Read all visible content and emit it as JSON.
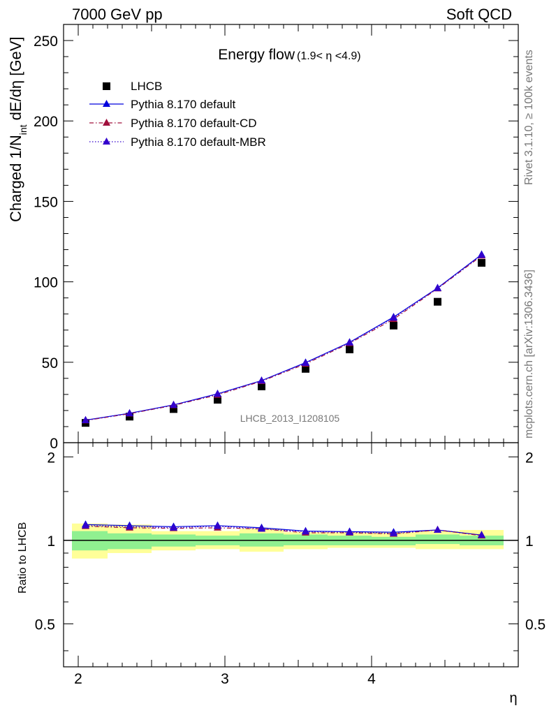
{
  "header": {
    "left": "7000 GeV pp",
    "right": "Soft QCD"
  },
  "side_labels": {
    "rivet": "Rivet 3.1.10, ≥ 100k events",
    "mcplots": "mcplots.cern.ch [arXiv:1306.3436]"
  },
  "chart_data": [
    {
      "type": "line",
      "title": "Energy flow",
      "title_cut": "(1.9< η <4.9)",
      "ylabel": "Charged 1/N",
      "ylabel_sub": "int",
      "ylabel_tail": " dE/dη [GeV]",
      "analysis_tag": "LHCB_2013_I1208105",
      "ylim": [
        0,
        260
      ],
      "xlim": [
        1.9,
        5.0
      ],
      "y_ticks": [
        0,
        50,
        100,
        150,
        200,
        250
      ],
      "x": [
        2.05,
        2.35,
        2.65,
        2.95,
        3.25,
        3.55,
        3.85,
        4.15,
        4.45,
        4.75
      ],
      "series": [
        {
          "name": "LHCB",
          "style": "data",
          "color": "#000000",
          "values": [
            12.3,
            16.2,
            20.9,
            26.7,
            35.0,
            45.9,
            58.0,
            72.8,
            87.6,
            111.8
          ]
        },
        {
          "name": "Pythia 8.170 default",
          "style": "solid",
          "color": "#0000dd",
          "values": [
            14.0,
            18.3,
            23.5,
            30.4,
            38.6,
            49.8,
            62.4,
            78.1,
            96.2,
            117.0
          ]
        },
        {
          "name": "Pythia 8.170 default-CD",
          "style": "dashdot",
          "color": "#a0103c",
          "values": [
            13.8,
            18.0,
            23.2,
            29.7,
            38.2,
            49.0,
            61.8,
            76.8,
            95.8,
            116.2
          ]
        },
        {
          "name": "Pythia 8.170 default-MBR",
          "style": "dotted",
          "color": "#3300cc",
          "values": [
            13.9,
            18.2,
            23.4,
            30.2,
            38.5,
            49.5,
            62.2,
            77.6,
            96.0,
            116.6
          ]
        }
      ]
    },
    {
      "type": "line",
      "ylabel": "Ratio to LHCB",
      "xlabel": "η",
      "ylim": [
        0.35,
        2.25
      ],
      "xlim": [
        1.9,
        5.0
      ],
      "y_ticks": [
        0.5,
        1,
        2
      ],
      "x_ticks": [
        2,
        3,
        4
      ],
      "bin_edges": [
        1.9,
        2.2,
        2.5,
        2.8,
        3.1,
        3.4,
        3.7,
        4.0,
        4.3,
        4.6,
        4.9
      ],
      "band_stat": [
        [
          0.92,
          1.08
        ],
        [
          0.93,
          1.06
        ],
        [
          0.95,
          1.05
        ],
        [
          0.96,
          1.04
        ],
        [
          0.95,
          1.06
        ],
        [
          0.96,
          1.05
        ],
        [
          0.96,
          1.04
        ],
        [
          0.96,
          1.03
        ],
        [
          0.97,
          1.05
        ],
        [
          0.96,
          1.04
        ]
      ],
      "band_total": [
        [
          0.86,
          1.15
        ],
        [
          0.9,
          1.14
        ],
        [
          0.92,
          1.08
        ],
        [
          0.93,
          1.08
        ],
        [
          0.91,
          1.1
        ],
        [
          0.93,
          1.07
        ],
        [
          0.94,
          1.07
        ],
        [
          0.94,
          1.07
        ],
        [
          0.93,
          1.08
        ],
        [
          0.93,
          1.09
        ]
      ],
      "series": [
        {
          "name": "Pythia 8.170 default",
          "style": "solid",
          "color": "#0000dd",
          "values": [
            1.14,
            1.13,
            1.12,
            1.13,
            1.11,
            1.08,
            1.075,
            1.07,
            1.09,
            1.045
          ]
        },
        {
          "name": "Pythia 8.170 default-CD",
          "style": "dashdot",
          "color": "#a0103c",
          "values": [
            1.125,
            1.11,
            1.105,
            1.11,
            1.1,
            1.065,
            1.065,
            1.055,
            1.09,
            1.04
          ]
        },
        {
          "name": "Pythia 8.170 default-MBR",
          "style": "dotted",
          "color": "#3300cc",
          "values": [
            1.13,
            1.12,
            1.11,
            1.125,
            1.1,
            1.075,
            1.07,
            1.06,
            1.09,
            1.045
          ]
        }
      ],
      "band_colors": {
        "stat": "#90f090",
        "total": "#ffff99"
      }
    }
  ]
}
